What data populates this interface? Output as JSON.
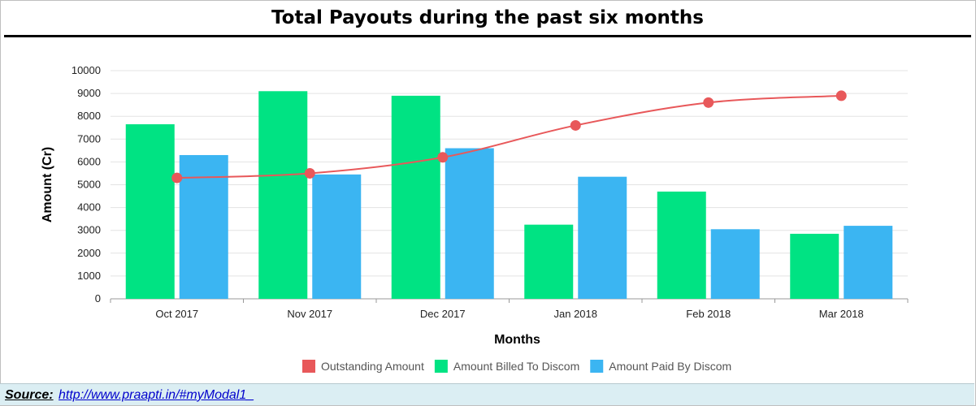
{
  "header": {
    "title": "Total Payouts during the past six months"
  },
  "source": {
    "label": "Source:",
    "url_text": "http://www.praapti.in/#myModal1_"
  },
  "chart_data": {
    "type": "bar",
    "title": "Total Payouts during the past six months",
    "xlabel": "Months",
    "ylabel": "Amount (Cr)",
    "ylim": [
      0,
      10000
    ],
    "yticks": [
      0,
      1000,
      2000,
      3000,
      4000,
      5000,
      6000,
      7000,
      8000,
      9000,
      10000
    ],
    "grid": true,
    "legend_position": "bottom-center",
    "categories": [
      "Oct 2017",
      "Nov 2017",
      "Dec 2017",
      "Jan 2018",
      "Feb 2018",
      "Mar 2018"
    ],
    "series": [
      {
        "name": "Outstanding Amount",
        "type": "line",
        "smooth": true,
        "color": "#e8585a",
        "values": [
          5300,
          5500,
          6200,
          7600,
          8600,
          8900
        ]
      },
      {
        "name": "Amount Billed To Discom",
        "type": "bar",
        "color": "#00e383",
        "values": [
          7650,
          9100,
          8900,
          3250,
          4700,
          2850
        ]
      },
      {
        "name": "Amount Paid By Discom",
        "type": "bar",
        "color": "#3bb5f2",
        "values": [
          6300,
          5450,
          6600,
          5350,
          3050,
          3200
        ]
      }
    ]
  }
}
